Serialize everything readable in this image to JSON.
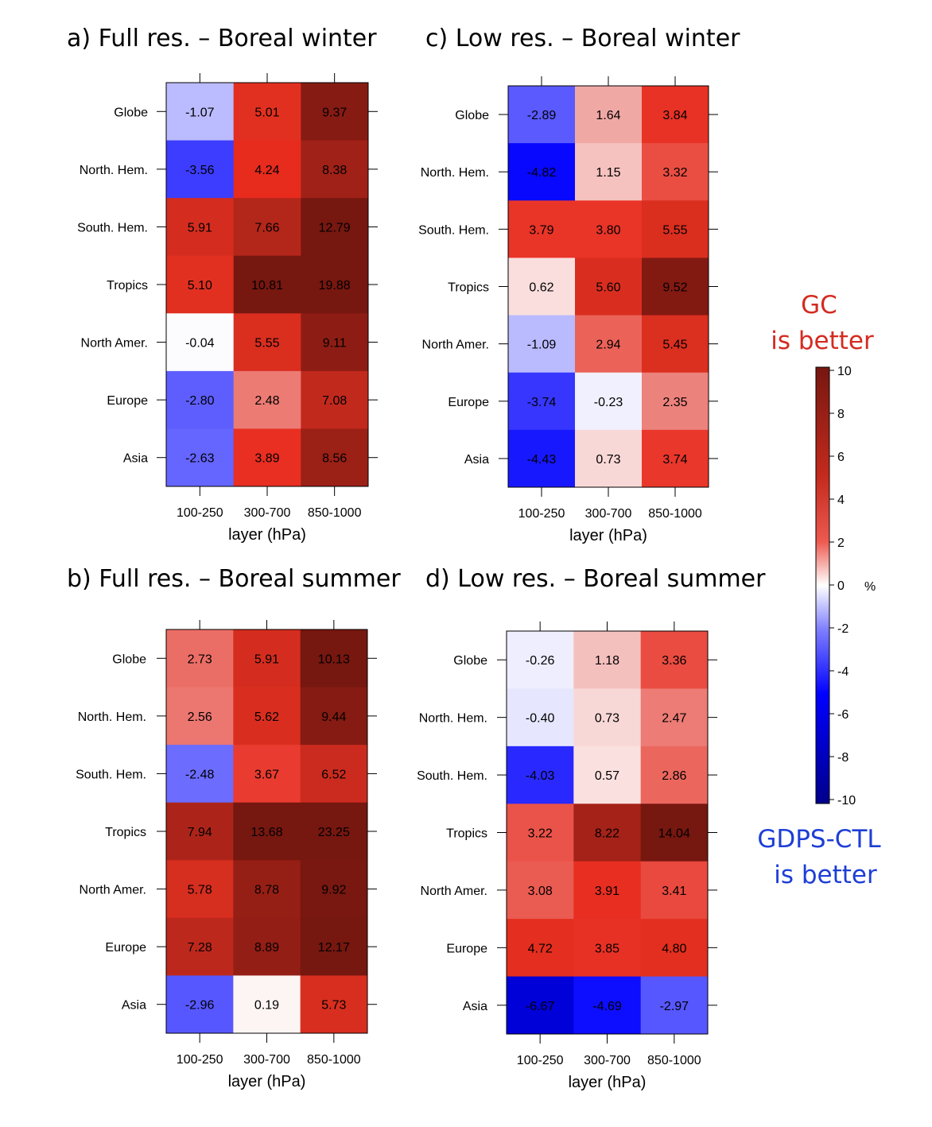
{
  "chart_data": [
    {
      "type": "heatmap",
      "title": "a) Full res. – Boreal winter",
      "xlabel": "layer (hPa)",
      "categories": [
        "100-250",
        "300-700",
        "850-1000"
      ],
      "rows": [
        "Globe",
        "North. Hem.",
        "South. Hem.",
        "Tropics",
        "North Amer.",
        "Europe",
        "Asia"
      ],
      "values": [
        [
          -1.07,
          5.01,
          9.37
        ],
        [
          -3.56,
          4.24,
          8.38
        ],
        [
          5.91,
          7.66,
          12.79
        ],
        [
          5.1,
          10.81,
          19.88
        ],
        [
          -0.04,
          5.55,
          9.11
        ],
        [
          -2.8,
          2.48,
          7.08
        ],
        [
          -2.63,
          3.89,
          8.56
        ]
      ],
      "labels": [
        [
          "-1.07",
          "5.01",
          "9.37"
        ],
        [
          "-3.56",
          "4.24",
          "8.38"
        ],
        [
          "5.91",
          "7.66",
          "12.79"
        ],
        [
          "5.10",
          "10.81",
          "19.88"
        ],
        [
          "-0.04",
          "5.55",
          "9.11"
        ],
        [
          "-2.80",
          "2.48",
          "7.08"
        ],
        [
          "-2.63",
          "3.89",
          "8.56"
        ]
      ]
    },
    {
      "type": "heatmap",
      "title": "b) Full res. – Boreal summer",
      "xlabel": "layer (hPa)",
      "categories": [
        "100-250",
        "300-700",
        "850-1000"
      ],
      "rows": [
        "Globe",
        "North. Hem.",
        "South. Hem.",
        "Tropics",
        "North Amer.",
        "Europe",
        "Asia"
      ],
      "values": [
        [
          2.73,
          5.91,
          10.13
        ],
        [
          2.56,
          5.62,
          9.44
        ],
        [
          -2.48,
          3.67,
          6.52
        ],
        [
          7.94,
          13.68,
          23.25
        ],
        [
          5.78,
          8.78,
          9.92
        ],
        [
          7.28,
          8.89,
          12.17
        ],
        [
          -2.96,
          0.19,
          5.73
        ]
      ],
      "labels": [
        [
          "2.73",
          "5.91",
          "10.13"
        ],
        [
          "2.56",
          "5.62",
          "9.44"
        ],
        [
          "-2.48",
          "3.67",
          "6.52"
        ],
        [
          "7.94",
          "13.68",
          "23.25"
        ],
        [
          "5.78",
          "8.78",
          "9.92"
        ],
        [
          "7.28",
          "8.89",
          "12.17"
        ],
        [
          "-2.96",
          "0.19",
          "5.73"
        ]
      ]
    },
    {
      "type": "heatmap",
      "title": "c) Low res. – Boreal winter",
      "xlabel": "layer (hPa)",
      "categories": [
        "100-250",
        "300-700",
        "850-1000"
      ],
      "rows": [
        "Globe",
        "North. Hem.",
        "South. Hem.",
        "Tropics",
        "North Amer.",
        "Europe",
        "Asia"
      ],
      "values": [
        [
          -2.89,
          1.64,
          3.84
        ],
        [
          -4.82,
          1.15,
          3.32
        ],
        [
          3.79,
          3.8,
          5.55
        ],
        [
          0.62,
          5.6,
          9.52
        ],
        [
          -1.09,
          2.94,
          5.45
        ],
        [
          -3.74,
          -0.23,
          2.35
        ],
        [
          -4.43,
          0.73,
          3.74
        ]
      ],
      "labels": [
        [
          "-2.89",
          "1.64",
          "3.84"
        ],
        [
          "-4.82",
          "1.15",
          "3.32"
        ],
        [
          "3.79",
          "3.80",
          "5.55"
        ],
        [
          "0.62",
          "5.60",
          "9.52"
        ],
        [
          "-1.09",
          "2.94",
          "5.45"
        ],
        [
          "-3.74",
          "-0.23",
          "2.35"
        ],
        [
          "-4.43",
          "0.73",
          "3.74"
        ]
      ]
    },
    {
      "type": "heatmap",
      "title": "d) Low res. – Boreal summer",
      "xlabel": "layer (hPa)",
      "categories": [
        "100-250",
        "300-700",
        "850-1000"
      ],
      "rows": [
        "Globe",
        "North. Hem.",
        "South. Hem.",
        "Tropics",
        "North Amer.",
        "Europe",
        "Asia"
      ],
      "values": [
        [
          -0.26,
          1.18,
          3.36
        ],
        [
          -0.4,
          0.73,
          2.47
        ],
        [
          -4.03,
          0.57,
          2.86
        ],
        [
          3.22,
          8.22,
          14.04
        ],
        [
          3.08,
          3.91,
          3.41
        ],
        [
          4.72,
          3.85,
          4.8
        ],
        [
          -6.67,
          -4.69,
          -2.97
        ]
      ],
      "labels": [
        [
          "-0.26",
          "1.18",
          "3.36"
        ],
        [
          "-0.40",
          "0.73",
          "2.47"
        ],
        [
          "-4.03",
          "0.57",
          "2.86"
        ],
        [
          "3.22",
          "8.22",
          "14.04"
        ],
        [
          "3.08",
          "3.91",
          "3.41"
        ],
        [
          "4.72",
          "3.85",
          "4.80"
        ],
        [
          "-6.67",
          "-4.69",
          "-2.97"
        ]
      ]
    }
  ],
  "colorbar": {
    "range": [
      -10,
      10
    ],
    "ticks": [
      "10",
      "8",
      "6",
      "4",
      "2",
      "0",
      "-2",
      "-4",
      "-6",
      "-8",
      "-10"
    ],
    "unit": "%",
    "colors": {
      "negative_end": "#00008b",
      "mid_blue": "#0000ff",
      "zero": "#ffffff",
      "mid_red": "#e8291c",
      "positive_end": "#761710"
    }
  },
  "annotations": {
    "gc_line1": "GC",
    "gc_line2": "is better",
    "gdps_line1": "GDPS-CTL",
    "gdps_line2": "is better"
  }
}
